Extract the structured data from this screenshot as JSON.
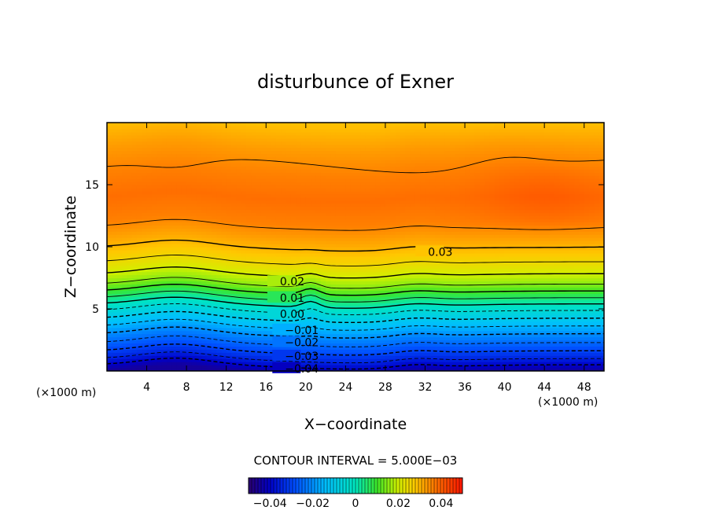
{
  "chart_data": {
    "type": "heatmap",
    "title": "disturbunce of Exner",
    "xlabel": "X−coordinate",
    "ylabel": "Z−coordinate",
    "x_unit_left": "(×1000 m)",
    "x_unit_right": "(×1000 m)",
    "xlim": [
      0,
      50
    ],
    "ylim": [
      0,
      20
    ],
    "x_ticks": [
      4,
      8,
      12,
      16,
      20,
      24,
      28,
      32,
      36,
      40,
      44,
      48
    ],
    "x_tick_labels": [
      "4",
      "8",
      "12",
      "16",
      "20",
      "24",
      "28",
      "32",
      "36",
      "40",
      "44",
      "48"
    ],
    "y_ticks": [
      5,
      10,
      15
    ],
    "y_tick_labels": [
      "5",
      "10",
      "15"
    ],
    "contour_interval_text": "CONTOUR INTERVAL = 5.000E−03",
    "colorbar": {
      "min": -0.05,
      "max": 0.05,
      "ticks": [
        -0.04,
        -0.02,
        0,
        0.02,
        0.04
      ],
      "tick_labels": [
        "−0.04",
        "−0.02",
        "0",
        "0.02",
        "0.04"
      ]
    },
    "contour_labels": [
      {
        "text": "0.03",
        "x": 32.3,
        "z": 9.6
      },
      {
        "text": "0.02",
        "x": 17.4,
        "z": 7.2
      },
      {
        "text": "0.01",
        "x": 17.4,
        "z": 5.9
      },
      {
        "text": "0.00",
        "x": 17.4,
        "z": 4.6
      },
      {
        "text": "−0.01",
        "x": 17.9,
        "z": 3.3
      },
      {
        "text": "−0.02",
        "x": 17.9,
        "z": 2.3
      },
      {
        "text": "−0.03",
        "x": 17.9,
        "z": 1.2
      },
      {
        "text": "−0.04",
        "x": 17.9,
        "z": 0.2
      }
    ],
    "field_profile": {
      "z": [
        0,
        1,
        2,
        3,
        4,
        5,
        6,
        7,
        8,
        9,
        10,
        11,
        12,
        14,
        16,
        18,
        20
      ],
      "value": [
        -0.045,
        -0.035,
        -0.027,
        -0.02,
        -0.012,
        -0.004,
        0.006,
        0.015,
        0.021,
        0.026,
        0.03,
        0.033,
        0.036,
        0.038,
        0.036,
        0.033,
        0.029
      ]
    },
    "colors": {
      "min_color": "#2a006e",
      "zero_color": "#00e0c0",
      "max_color": "#ff1a00",
      "contour_color": "#000000"
    }
  }
}
